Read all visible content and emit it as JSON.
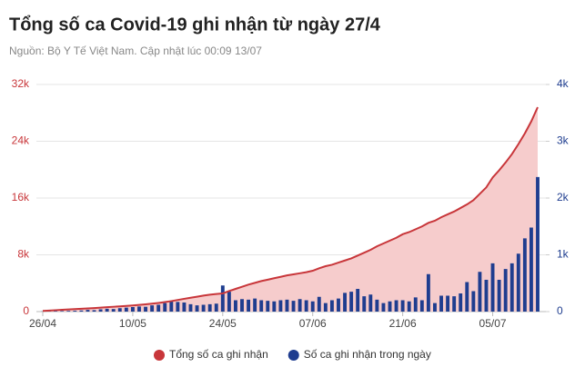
{
  "chart_data": {
    "type": "line",
    "title": "Tổng số ca Covid-19 ghi nhận từ ngày 27/4",
    "subtitle": "Nguồn: Bộ Y Tế Việt Nam. Cập nhật lúc 00:09 13/07",
    "categories": [
      "26/04",
      null,
      null,
      null,
      null,
      null,
      null,
      null,
      null,
      null,
      null,
      null,
      null,
      null,
      "10/05",
      null,
      null,
      null,
      null,
      null,
      null,
      null,
      null,
      null,
      null,
      null,
      null,
      null,
      "24/05",
      null,
      null,
      null,
      null,
      null,
      null,
      null,
      null,
      null,
      null,
      null,
      null,
      null,
      "07/06",
      null,
      null,
      null,
      null,
      null,
      null,
      null,
      null,
      null,
      null,
      null,
      null,
      null,
      "21/06",
      null,
      null,
      null,
      null,
      null,
      null,
      null,
      null,
      null,
      null,
      null,
      null,
      null,
      "05/07",
      null,
      null,
      null,
      null,
      null,
      null,
      null
    ],
    "series": [
      {
        "name": "Tổng số ca ghi nhận",
        "color": "#c8363a",
        "area_color": "#f6cccc",
        "type": "line",
        "axis": "y",
        "values": [
          100,
          150,
          200,
          250,
          300,
          350,
          400,
          450,
          500,
          560,
          620,
          680,
          740,
          800,
          870,
          950,
          1030,
          1120,
          1220,
          1340,
          1480,
          1640,
          1800,
          1950,
          2100,
          2250,
          2380,
          2480,
          2560,
          2900,
          3200,
          3500,
          3800,
          4050,
          4300,
          4500,
          4700,
          4900,
          5100,
          5250,
          5400,
          5550,
          5760,
          6100,
          6400,
          6600,
          6900,
          7200,
          7500,
          7900,
          8300,
          8700,
          9200,
          9600,
          10000,
          10400,
          10900,
          11200,
          11600,
          12000,
          12500,
          12800,
          13300,
          13700,
          14100,
          14600,
          15100,
          15700,
          16600,
          17500,
          18900,
          19900,
          21000,
          22200,
          23600,
          25100,
          26800,
          28800
        ]
      },
      {
        "name": "Số ca ghi nhận trong ngày",
        "color": "#1f3d8f",
        "type": "bar",
        "axis": "y2",
        "values": [
          3,
          5,
          8,
          10,
          12,
          15,
          20,
          30,
          25,
          40,
          50,
          45,
          60,
          70,
          80,
          90,
          85,
          110,
          120,
          150,
          180,
          170,
          160,
          130,
          110,
          120,
          130,
          140,
          460,
          350,
          200,
          220,
          210,
          230,
          200,
          190,
          180,
          200,
          210,
          190,
          220,
          200,
          180,
          260,
          150,
          200,
          230,
          330,
          350,
          400,
          270,
          300,
          210,
          150,
          180,
          200,
          200,
          180,
          250,
          200,
          660,
          150,
          280,
          280,
          270,
          320,
          520,
          360,
          700,
          560,
          850,
          560,
          750,
          850,
          1020,
          1290,
          1480,
          2370
        ]
      }
    ],
    "ylim": [
      0,
      32000
    ],
    "yticks": [
      0,
      {
        "value": 8000,
        "label": "8k"
      },
      {
        "value": 16000,
        "label": "16k"
      },
      {
        "value": 24000,
        "label": "24k"
      },
      {
        "value": 32000,
        "label": "32k"
      }
    ],
    "y2lim": [
      0,
      4000
    ],
    "y2ticks": [
      0,
      {
        "value": 1000,
        "label": "1k"
      },
      {
        "value": 2000,
        "label": "2k"
      },
      {
        "value": 3000,
        "label": "3k"
      },
      {
        "value": 4000,
        "label": "4k"
      }
    ],
    "grid": true,
    "legend": "bottom"
  }
}
